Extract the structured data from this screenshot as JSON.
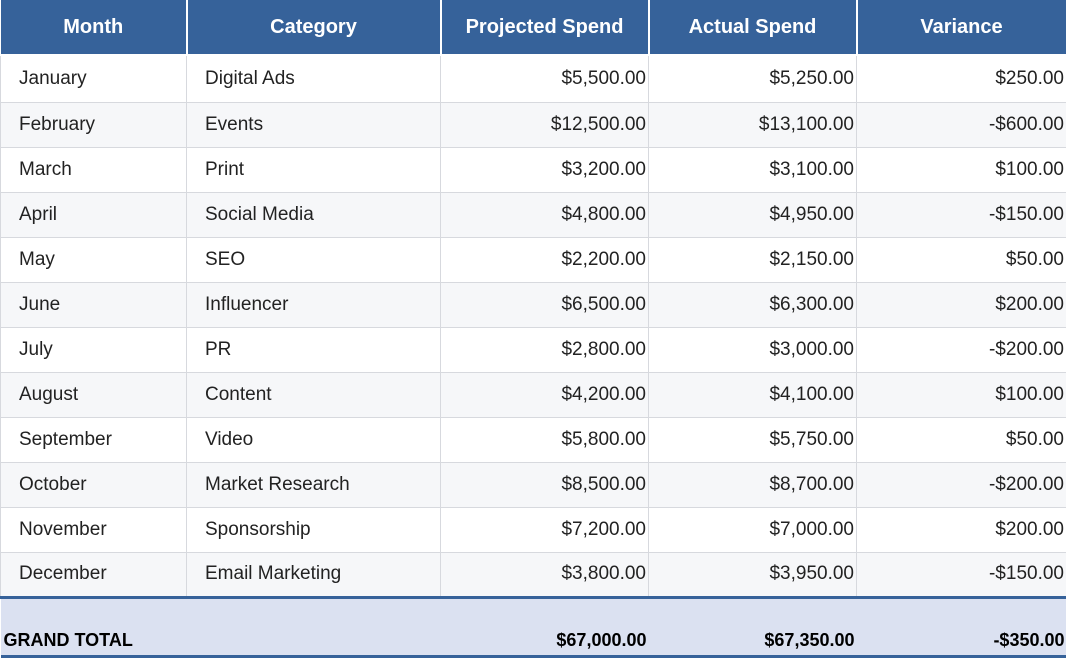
{
  "table": {
    "headers": [
      "Month",
      "Category",
      "Projected Spend",
      "Actual Spend",
      "Variance"
    ],
    "rows": [
      [
        "January",
        "Digital Ads",
        "$5,500.00",
        "$5,250.00",
        "$250.00"
      ],
      [
        "February",
        "Events",
        "$12,500.00",
        "$13,100.00",
        "-$600.00"
      ],
      [
        "March",
        "Print",
        "$3,200.00",
        "$3,100.00",
        "$100.00"
      ],
      [
        "April",
        "Social Media",
        "$4,800.00",
        "$4,950.00",
        "-$150.00"
      ],
      [
        "May",
        "SEO",
        "$2,200.00",
        "$2,150.00",
        "$50.00"
      ],
      [
        "June",
        "Influencer",
        "$6,500.00",
        "$6,300.00",
        "$200.00"
      ],
      [
        "July",
        "PR",
        "$2,800.00",
        "$3,000.00",
        "-$200.00"
      ],
      [
        "August",
        "Content",
        "$4,200.00",
        "$4,100.00",
        "$100.00"
      ],
      [
        "September",
        "Video",
        "$5,800.00",
        "$5,750.00",
        "$50.00"
      ],
      [
        "October",
        "Market Research",
        "$8,500.00",
        "$8,700.00",
        "-$200.00"
      ],
      [
        "November",
        "Sponsorship",
        "$7,200.00",
        "$7,000.00",
        "$200.00"
      ],
      [
        "December",
        "Email Marketing",
        "$3,800.00",
        "$3,950.00",
        "-$150.00"
      ]
    ],
    "total": {
      "label": "GRAND TOTAL",
      "category": "",
      "projected": "$67,000.00",
      "actual": "$67,350.00",
      "variance": "-$350.00"
    }
  },
  "colors": {
    "header_bg": "#36629a",
    "total_bg": "#dbe1f1",
    "stripe_bg": "#f6f7f9"
  }
}
